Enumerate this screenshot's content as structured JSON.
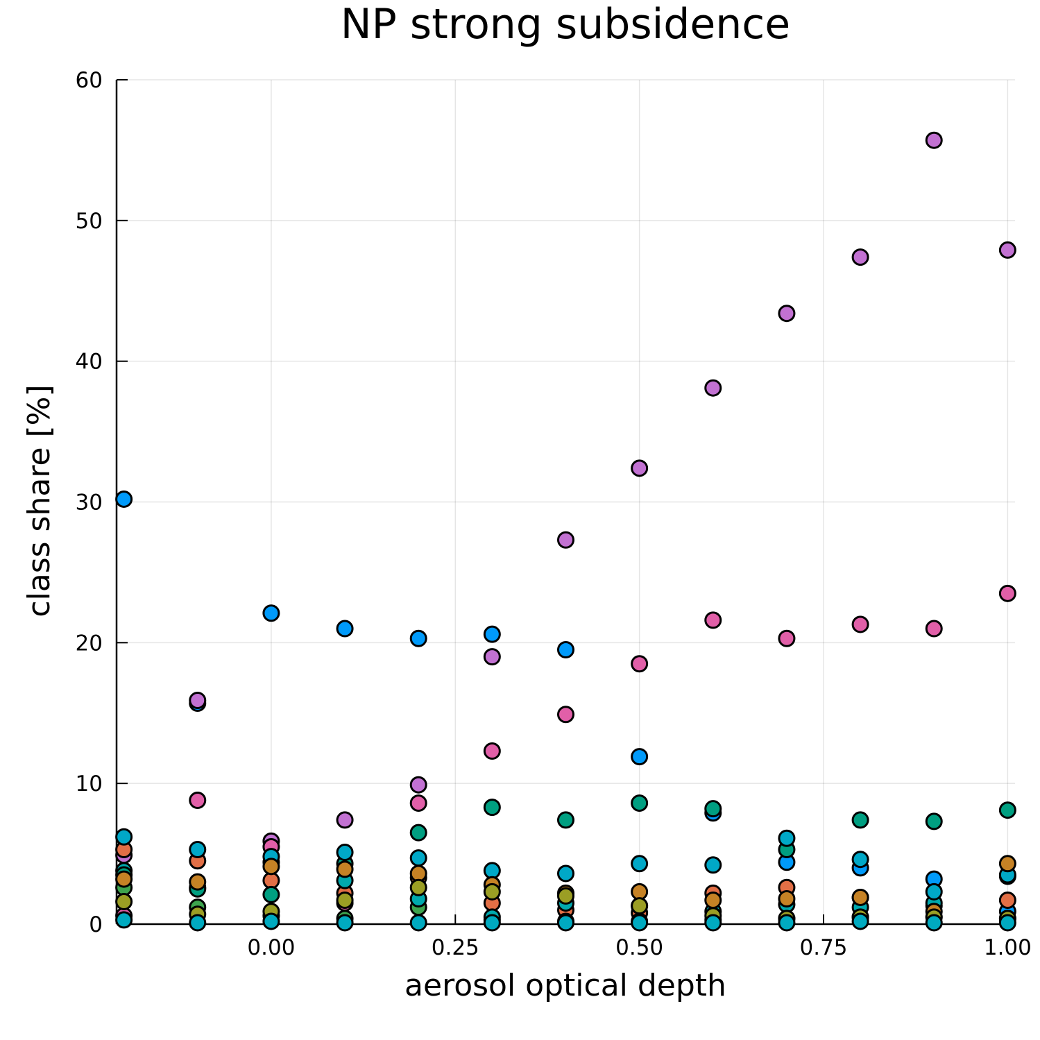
{
  "chart_data": {
    "type": "scatter",
    "title": "NP strong subsidence",
    "xlabel": "aerosol optical depth",
    "ylabel": "class share [%]",
    "xlim": [
      -0.21,
      1.01
    ],
    "ylim": [
      0,
      60
    ],
    "xticks": [
      0.0,
      0.25,
      0.5,
      0.75,
      1.0
    ],
    "xtick_labels": [
      "0.00",
      "0.25",
      "0.50",
      "0.75",
      "1.00"
    ],
    "yticks": [
      0,
      10,
      20,
      30,
      40,
      50,
      60
    ],
    "ytick_labels": [
      "0",
      "10",
      "20",
      "30",
      "40",
      "50",
      "60"
    ],
    "grid": true,
    "legend": "none",
    "x": [
      -0.2,
      -0.1,
      0.0,
      0.1,
      0.2,
      0.3,
      0.4,
      0.5,
      0.6,
      0.7,
      0.8,
      0.9,
      1.0
    ],
    "series": [
      {
        "color": "#009AFA",
        "values": [
          30.2,
          15.7,
          22.1,
          21.0,
          20.3,
          20.6,
          19.5,
          11.9,
          7.9,
          4.4,
          4.0,
          3.2,
          0.9
        ]
      },
      {
        "color": "#C271D2",
        "values": [
          4.9,
          15.9,
          5.9,
          7.4,
          9.9,
          19.0,
          27.3,
          32.4,
          38.1,
          43.4,
          47.4,
          55.7,
          47.9
        ]
      },
      {
        "color": "#E26F46",
        "values": [
          5.3,
          4.5,
          3.1,
          2.2,
          3.3,
          1.5,
          1.0,
          0.8,
          2.2,
          2.6,
          1.9,
          1.3,
          1.7
        ]
      },
      {
        "color": "#3EA44E",
        "values": [
          2.6,
          1.2,
          0.6,
          0.4,
          1.2,
          0.3,
          0.2,
          0.2,
          0.3,
          0.4,
          0.5,
          0.5,
          0.4
        ]
      },
      {
        "color": "#E15FA8",
        "values": [
          0.6,
          8.8,
          5.5,
          1.5,
          8.6,
          12.3,
          14.9,
          18.5,
          21.6,
          20.3,
          21.3,
          21.0,
          23.5
        ]
      },
      {
        "color": "#00A9AE",
        "values": [
          3.8,
          2.6,
          4.4,
          3.1,
          1.8,
          0.5,
          1.5,
          1.3,
          0.9,
          1.4,
          1.2,
          1.5,
          3.4
        ]
      },
      {
        "color": "#009F81",
        "values": [
          3.5,
          2.5,
          2.1,
          4.3,
          6.5,
          8.3,
          7.4,
          8.6,
          8.2,
          5.3,
          7.4,
          7.3,
          8.1
        ]
      },
      {
        "color": "#00A8C7",
        "values": [
          6.2,
          5.3,
          4.8,
          5.1,
          4.7,
          3.8,
          3.6,
          4.3,
          4.2,
          6.1,
          4.6,
          2.3,
          3.5
        ]
      },
      {
        "color": "#C68225",
        "values": [
          3.2,
          3.0,
          4.1,
          3.9,
          3.6,
          2.8,
          2.2,
          2.3,
          1.7,
          1.8,
          1.9,
          0.9,
          4.3
        ]
      },
      {
        "color": "#9B9E24",
        "values": [
          1.6,
          0.7,
          0.9,
          1.7,
          2.6,
          2.3,
          2.0,
          1.3,
          0.6,
          0.4,
          0.5,
          0.5,
          0.4
        ]
      },
      {
        "color": "#00AAC0",
        "values": [
          0.3,
          0.1,
          0.2,
          0.1,
          0.1,
          0.1,
          0.1,
          0.1,
          0.1,
          0.1,
          0.2,
          0.1,
          0.1
        ]
      }
    ]
  }
}
